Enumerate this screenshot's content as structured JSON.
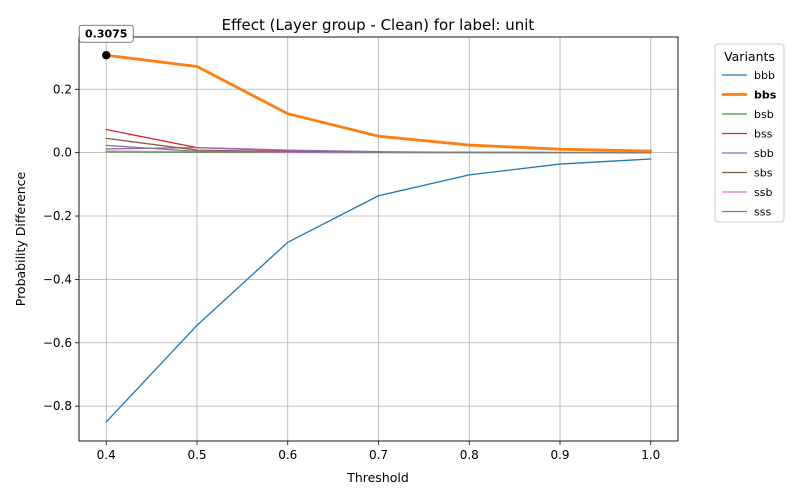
{
  "chart_data": {
    "type": "line",
    "title": "Effect (Layer group - Clean) for label: unit",
    "xlabel": "Threshold",
    "ylabel": "Probability Difference",
    "x": [
      0.4,
      0.5,
      0.6,
      0.7,
      0.8,
      0.9,
      1.0
    ],
    "xlim": [
      0.37,
      1.03
    ],
    "ylim": [
      -0.91,
      0.365
    ],
    "xticks": [
      0.4,
      0.5,
      0.6,
      0.7,
      0.8,
      0.9,
      1.0
    ],
    "xtick_labels": [
      "0.4",
      "0.5",
      "0.6",
      "0.7",
      "0.8",
      "0.9",
      "1.0"
    ],
    "yticks": [
      -0.8,
      -0.6,
      -0.4,
      -0.2,
      0.0,
      0.2
    ],
    "ytick_labels": [
      "−0.8",
      "−0.6",
      "−0.4",
      "−0.2",
      "0.0",
      "0.2"
    ],
    "grid": true,
    "legend": {
      "title": "Variants",
      "placement": "outside-right"
    },
    "series": [
      {
        "name": "bbb",
        "color": "#1f77b4",
        "highlight": false,
        "values": [
          -0.85,
          -0.545,
          -0.283,
          -0.136,
          -0.07,
          -0.036,
          -0.02
        ]
      },
      {
        "name": "bbs",
        "color": "#ff7f0e",
        "highlight": true,
        "values": [
          0.3075,
          0.272,
          0.123,
          0.052,
          0.024,
          0.011,
          0.005
        ]
      },
      {
        "name": "bsb",
        "color": "#2ca02c",
        "highlight": false,
        "values": [
          0.003,
          0.001,
          0.0005,
          0.0002,
          0.0001,
          0.0,
          0.0
        ]
      },
      {
        "name": "bss",
        "color": "#d62728",
        "highlight": false,
        "values": [
          0.073,
          0.016,
          0.006,
          0.002,
          0.001,
          0.0005,
          0.0002
        ]
      },
      {
        "name": "sbb",
        "color": "#9467bd",
        "highlight": false,
        "values": [
          0.012,
          0.016,
          0.008,
          0.003,
          0.001,
          0.0005,
          0.0002
        ]
      },
      {
        "name": "sbs",
        "color": "#8c564b",
        "highlight": false,
        "values": [
          0.045,
          0.008,
          0.003,
          0.001,
          0.0005,
          0.0002,
          0.0001
        ]
      },
      {
        "name": "ssb",
        "color": "#e377c2",
        "highlight": false,
        "values": [
          0.005,
          0.003,
          0.001,
          0.0005,
          0.0002,
          0.0001,
          0.0
        ]
      },
      {
        "name": "sss",
        "color": "#7f7f7f",
        "highlight": false,
        "values": [
          0.023,
          0.004,
          0.002,
          0.001,
          0.0005,
          0.0002,
          0.0001
        ]
      }
    ],
    "annotation": {
      "label": "0.3075",
      "x": 0.4,
      "y": 0.3075,
      "series": "bbs"
    }
  }
}
